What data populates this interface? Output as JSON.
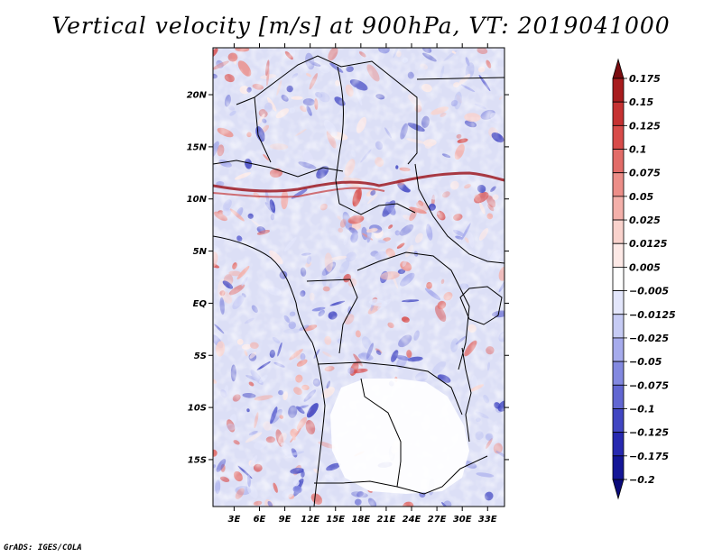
{
  "title": "Vertical velocity [m/s] at 900hPa, VT: 2019041000",
  "footer": "GrADS: IGES/COLA",
  "map": {
    "lat_labels": [
      "20N",
      "15N",
      "10N",
      "5N",
      "EQ",
      "5S",
      "10S",
      "15S"
    ],
    "lat_values": [
      20,
      15,
      10,
      5,
      0,
      -5,
      -10,
      -15
    ],
    "lon_labels": [
      "3E",
      "6E",
      "9E",
      "12E",
      "15E",
      "18E",
      "21E",
      "24E",
      "27E",
      "30E",
      "33E"
    ],
    "lon_values": [
      3,
      6,
      9,
      12,
      15,
      18,
      21,
      24,
      27,
      30,
      33
    ],
    "lon_range": [
      0.5,
      35
    ],
    "lat_range": [
      -19.5,
      24.5
    ]
  },
  "colorbar": {
    "labels": [
      "0.175",
      "0.15",
      "0.125",
      "0.1",
      "0.075",
      "0.05",
      "0.025",
      "0.0125",
      "0.005",
      "−0.005",
      "−0.0125",
      "−0.025",
      "−0.05",
      "−0.075",
      "−0.1",
      "−0.125",
      "−0.175",
      "−0.2"
    ],
    "colors": [
      "#7a0c10",
      "#a81c1e",
      "#c63232",
      "#d84c4a",
      "#e26c68",
      "#ec8e88",
      "#f4b0aa",
      "#f9d2cc",
      "#fde9e6",
      "#ffffff",
      "#e3e6fb",
      "#c6cbf4",
      "#a6abec",
      "#8389e0",
      "#6267d2",
      "#4146c2",
      "#2729b0",
      "#141697",
      "#0a0a7a"
    ]
  }
}
